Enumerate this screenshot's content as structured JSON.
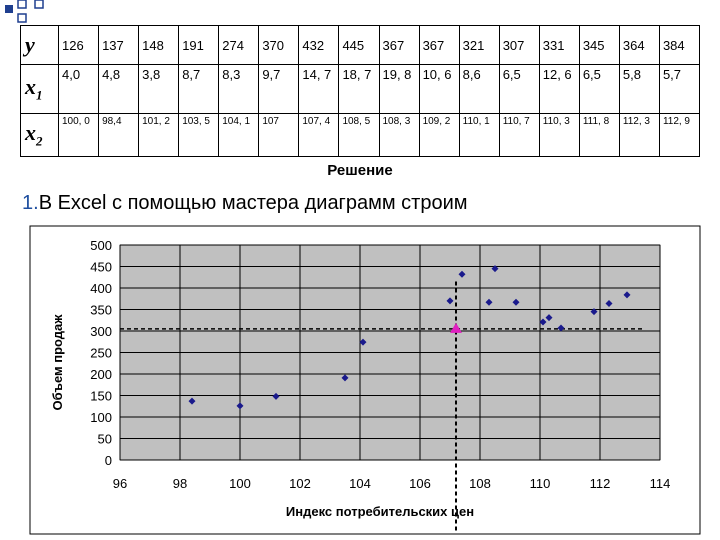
{
  "table": {
    "rows": [
      {
        "label": "y",
        "sub": "",
        "cells": [
          "126",
          "137",
          "148",
          "191",
          "274",
          "370",
          "432",
          "445",
          "367",
          "367",
          "321",
          "307",
          "331",
          "345",
          "364",
          "384"
        ]
      },
      {
        "label": "x",
        "sub": "1",
        "cells": [
          "4,0",
          "4,8",
          "3,8",
          "8,7",
          "8,3",
          "9,7",
          "14, 7",
          "18, 7",
          "19, 8",
          "10, 6",
          "8,6",
          "6,5",
          "12, 6",
          "6,5",
          "5,8",
          "5,7"
        ]
      },
      {
        "label": "x",
        "sub": "2",
        "cells": [
          "100, 0",
          "98,4",
          "101, 2",
          "103, 5",
          "104, 1",
          "107",
          "107, 4",
          "108, 5",
          "108, 3",
          "109, 2",
          "110, 1",
          "110, 7",
          "110, 3",
          "111, 8",
          "112, 3",
          "112, 9"
        ]
      }
    ]
  },
  "solution_heading": "Решение",
  "step": {
    "number": "1.",
    "text": "В Excel с помощью мастера диаграмм строим"
  },
  "chart_data": {
    "type": "scatter",
    "xlabel": "Индекс потребительских цен",
    "ylabel": "Объем продаж",
    "xlim": [
      96,
      114
    ],
    "ylim": [
      0,
      500
    ],
    "xticks": [
      96,
      98,
      100,
      102,
      104,
      106,
      108,
      110,
      112,
      114
    ],
    "yticks": [
      0,
      50,
      100,
      150,
      200,
      250,
      300,
      350,
      400,
      450,
      500
    ],
    "grid": true,
    "points": [
      {
        "x": 98.4,
        "y": 137
      },
      {
        "x": 100.0,
        "y": 126
      },
      {
        "x": 101.2,
        "y": 148
      },
      {
        "x": 103.5,
        "y": 191
      },
      {
        "x": 104.1,
        "y": 274
      },
      {
        "x": 107.0,
        "y": 370
      },
      {
        "x": 107.4,
        "y": 432
      },
      {
        "x": 108.5,
        "y": 445
      },
      {
        "x": 108.3,
        "y": 367
      },
      {
        "x": 109.2,
        "y": 367
      },
      {
        "x": 110.1,
        "y": 321
      },
      {
        "x": 110.7,
        "y": 307
      },
      {
        "x": 110.3,
        "y": 331
      },
      {
        "x": 111.8,
        "y": 345
      },
      {
        "x": 112.3,
        "y": 364
      },
      {
        "x": 112.9,
        "y": 384
      }
    ],
    "mean_point": {
      "x": 107.2,
      "y": 305
    },
    "mean_lines": {
      "x": 107.2,
      "y": 305
    },
    "colors": {
      "point": "#1a1a8c",
      "mean": "#e020c0",
      "plot_bg": "#c0c0c0",
      "grid": "#000000"
    }
  }
}
